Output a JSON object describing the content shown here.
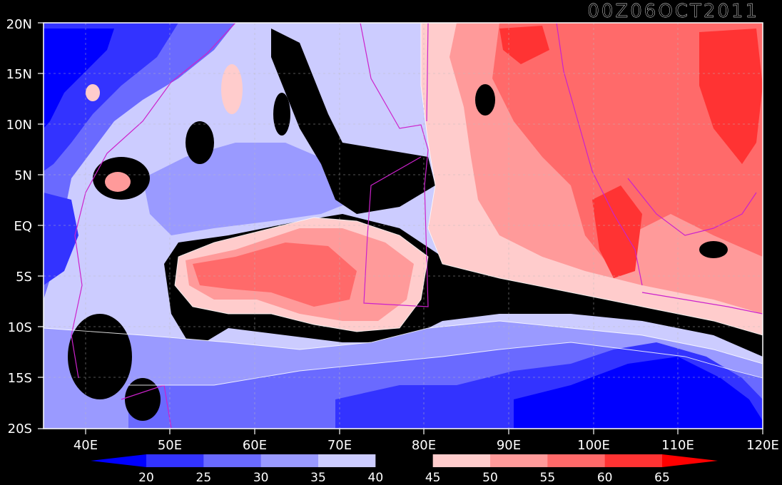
{
  "title": "00Z06OCT2011",
  "lat_labels": [
    "20N",
    "15N",
    "10N",
    "5N",
    "EQ",
    "5S",
    "10S",
    "15S",
    "20S"
  ],
  "lon_labels": [
    "40E",
    "50E",
    "60E",
    "70E",
    "80E",
    "90E",
    "100E",
    "110E",
    "120E"
  ],
  "colorbar": {
    "labels": [
      "20",
      "25",
      "30",
      "35",
      "40",
      "45",
      "50",
      "55",
      "60",
      "65"
    ],
    "colors": [
      "#0000ff",
      "#3333ff",
      "#6a6aff",
      "#9a9aff",
      "#ccccff",
      "#000000",
      "#ffcccc",
      "#ff9a9a",
      "#ff6a6a",
      "#ff3333",
      "#ff0000"
    ]
  },
  "colors": {
    "background": "#000000",
    "frame": "#ffffff",
    "coastline": "#cc22cc",
    "gridline": "#bbbbbb"
  }
}
